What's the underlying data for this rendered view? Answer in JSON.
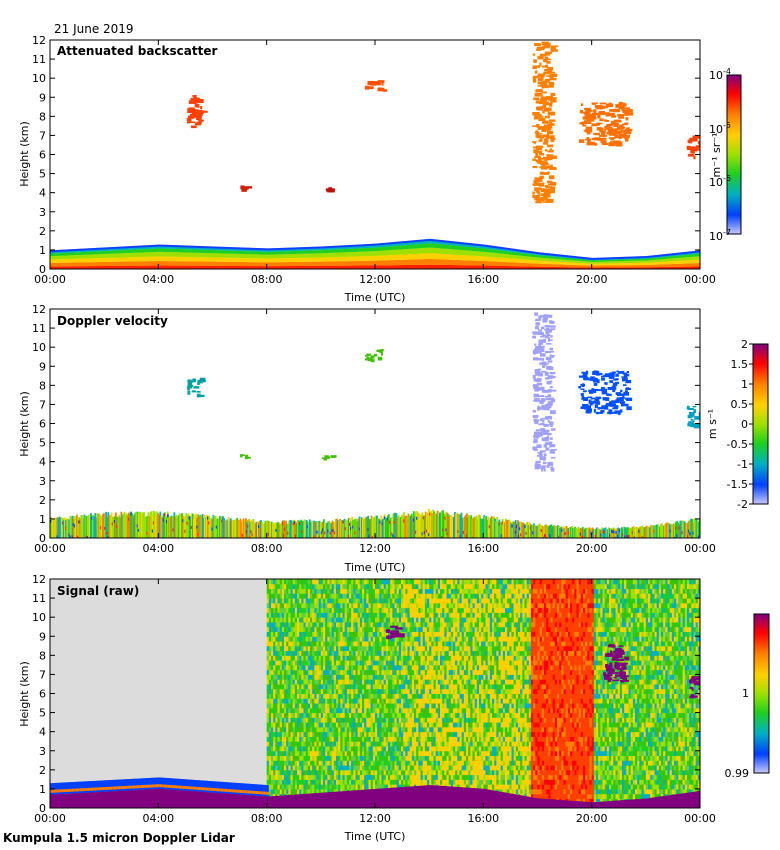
{
  "date_label": "21 June 2019",
  "footer_label": "Kumpula 1.5 micron Doppler Lidar",
  "colors": {
    "jet": [
      "#7f007f",
      "#ff0000",
      "#ff8000",
      "#ffd000",
      "#a0e000",
      "#20d020",
      "#00b0c0",
      "#0040ff",
      "#c8c8ff"
    ],
    "panel3_night_bg": "#dcdcdc",
    "saturated_ground": "#800080"
  },
  "chart_data": [
    {
      "type": "heatmap",
      "title": "Attenuated backscatter",
      "xlabel": "Time (UTC)",
      "ylabel": "Height (km)",
      "x_ticks": [
        "00:00",
        "04:00",
        "08:00",
        "12:00",
        "16:00",
        "20:00",
        "00:00"
      ],
      "xlim_hours": [
        0,
        24
      ],
      "ylim_km": [
        0,
        12
      ],
      "y_ticks": [
        "0",
        "1",
        "2",
        "3",
        "4",
        "5",
        "6",
        "7",
        "8",
        "9",
        "10",
        "11",
        "12"
      ],
      "colorbar": {
        "unit": "m-1 sr-1",
        "unit_label": "m⁻¹ sr⁻¹",
        "scale": "log",
        "ticks": [
          {
            "base": "10",
            "exp": "-4"
          },
          {
            "base": "10",
            "exp": "-5"
          },
          {
            "base": "10",
            "exp": "-6"
          },
          {
            "base": "10",
            "exp": "-7"
          }
        ]
      },
      "features": {
        "boundary_layer_top_km": [
          [
            0,
            0.9
          ],
          [
            2,
            1.05
          ],
          [
            4,
            1.2
          ],
          [
            6,
            1.1
          ],
          [
            8,
            1.0
          ],
          [
            10,
            1.1
          ],
          [
            12,
            1.25
          ],
          [
            14,
            1.5
          ],
          [
            16,
            1.2
          ],
          [
            18,
            0.8
          ],
          [
            20,
            0.5
          ],
          [
            22,
            0.6
          ],
          [
            24,
            0.9
          ]
        ],
        "cloud_patches": [
          {
            "t0": 5.0,
            "t1": 5.6,
            "h0": 7.5,
            "h1": 9.2,
            "color": "#ff4000"
          },
          {
            "t0": 7.0,
            "t1": 7.3,
            "h0": 4.2,
            "h1": 4.4,
            "color": "#d02000"
          },
          {
            "t0": 10.0,
            "t1": 10.4,
            "h0": 4.15,
            "h1": 4.35,
            "color": "#c01000"
          },
          {
            "t0": 11.6,
            "t1": 12.3,
            "h0": 9.4,
            "h1": 9.9,
            "color": "#ff5000"
          },
          {
            "t0": 17.8,
            "t1": 18.5,
            "h0": 3.5,
            "h1": 12.0,
            "color": "#ff8000"
          },
          {
            "t0": 19.5,
            "t1": 21.3,
            "h0": 6.6,
            "h1": 8.8,
            "color": "#ff7000"
          },
          {
            "t0": 23.5,
            "t1": 24.0,
            "h0": 5.9,
            "h1": 7.0,
            "color": "#ff4000"
          }
        ]
      }
    },
    {
      "type": "heatmap",
      "title": "Doppler velocity",
      "xlabel": "Time (UTC)",
      "ylabel": "Height (km)",
      "x_ticks": [
        "00:00",
        "04:00",
        "08:00",
        "12:00",
        "16:00",
        "20:00",
        "00:00"
      ],
      "xlim_hours": [
        0,
        24
      ],
      "ylim_km": [
        0,
        12
      ],
      "y_ticks": [
        "0",
        "1",
        "2",
        "3",
        "4",
        "5",
        "6",
        "7",
        "8",
        "9",
        "10",
        "11",
        "12"
      ],
      "colorbar": {
        "unit": "m s-1",
        "unit_label": "m s⁻¹",
        "range": [
          -2,
          2
        ],
        "ticks": [
          "2",
          "1.5",
          "1",
          "0.5",
          "0",
          "-0.5",
          "-1",
          "-1.5",
          "-2"
        ]
      },
      "features": {
        "boundary_layer_top_km": [
          [
            0,
            1.0
          ],
          [
            2,
            1.25
          ],
          [
            4,
            1.3
          ],
          [
            6,
            1.1
          ],
          [
            8,
            0.85
          ],
          [
            10,
            0.9
          ],
          [
            12,
            1.1
          ],
          [
            14,
            1.4
          ],
          [
            16,
            1.1
          ],
          [
            18,
            0.7
          ],
          [
            20,
            0.5
          ],
          [
            22,
            0.6
          ],
          [
            24,
            1.0
          ]
        ],
        "cloud_patches": [
          {
            "t0": 5.0,
            "t1": 5.6,
            "h0": 7.5,
            "h1": 8.4,
            "color": "#00a0a0"
          },
          {
            "t0": 7.0,
            "t1": 7.4,
            "h0": 4.15,
            "h1": 4.4,
            "color": "#40c000"
          },
          {
            "t0": 10.0,
            "t1": 10.4,
            "h0": 4.15,
            "h1": 4.35,
            "color": "#40c000"
          },
          {
            "t0": 11.6,
            "t1": 12.3,
            "h0": 9.4,
            "h1": 9.9,
            "color": "#40c000"
          },
          {
            "t0": 17.8,
            "t1": 18.5,
            "h0": 3.5,
            "h1": 12.0,
            "color": "#a0a0ff"
          },
          {
            "t0": 19.5,
            "t1": 21.3,
            "h0": 6.6,
            "h1": 8.8,
            "color": "#0050ff"
          },
          {
            "t0": 23.5,
            "t1": 24.0,
            "h0": 5.9,
            "h1": 7.0,
            "color": "#00a0c0"
          }
        ]
      }
    },
    {
      "type": "heatmap",
      "title": "Signal (raw)",
      "xlabel": "Time (UTC)",
      "ylabel": "Height (km)",
      "x_ticks": [
        "00:00",
        "04:00",
        "08:00",
        "12:00",
        "16:00",
        "20:00",
        "00:00"
      ],
      "xlim_hours": [
        0,
        24
      ],
      "ylim_km": [
        0,
        12
      ],
      "y_ticks": [
        "0",
        "1",
        "2",
        "3",
        "4",
        "5",
        "6",
        "7",
        "8",
        "9",
        "10",
        "11",
        "12"
      ],
      "colorbar": {
        "range": [
          0.99,
          1.01
        ],
        "ticks": [
          "1",
          "0.99"
        ]
      },
      "features": {
        "no_data_until_hour": 8.0,
        "ground_layer_top_km": [
          [
            0,
            0.7
          ],
          [
            4,
            1.0
          ],
          [
            8,
            0.6
          ],
          [
            10,
            0.8
          ],
          [
            12,
            1.0
          ],
          [
            14,
            1.2
          ],
          [
            16,
            1.0
          ],
          [
            18,
            0.5
          ],
          [
            20,
            0.3
          ],
          [
            22,
            0.5
          ],
          [
            24,
            0.9
          ]
        ],
        "high_signal_band_hours": [
          17.7,
          20.0
        ],
        "cloud_patches": [
          {
            "t0": 20.4,
            "t1": 21.3,
            "h0": 6.7,
            "h1": 8.6,
            "color": "#800080"
          },
          {
            "t0": 23.6,
            "t1": 24.0,
            "h0": 5.8,
            "h1": 7.0,
            "color": "#800080"
          },
          {
            "t0": 12.4,
            "t1": 12.9,
            "h0": 9.0,
            "h1": 9.6,
            "color": "#800080"
          }
        ]
      }
    }
  ]
}
